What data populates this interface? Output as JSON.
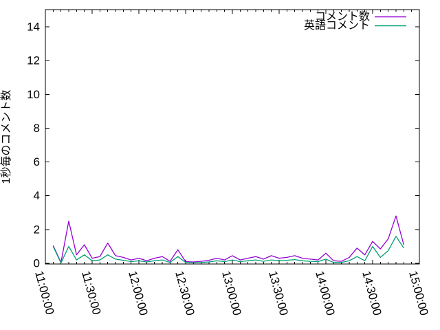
{
  "window": {
    "background": "#ffffff"
  },
  "chart_data": {
    "type": "line",
    "title": "",
    "xlabel": "",
    "ylabel": "1秒毎のコメント数",
    "grid": "off",
    "legend_position": "top-right-inside",
    "axis_color": "#000000",
    "ylim": [
      0,
      15
    ],
    "y_ticks": [
      0,
      2,
      4,
      6,
      8,
      10,
      12,
      14
    ],
    "x_tick_labels": [
      "11:00:00",
      "11:30:00",
      "12:00:00",
      "12:30:00",
      "13:00:00",
      "13:30:00",
      "14:00:00",
      "14:30:00",
      "15:00:00"
    ],
    "x_minor_tick_minutes": 5,
    "x": [
      "11:05:00",
      "11:10:00",
      "11:15:00",
      "11:20:00",
      "11:25:00",
      "11:30:00",
      "11:35:00",
      "11:40:00",
      "11:45:00",
      "11:50:00",
      "11:55:00",
      "12:00:00",
      "12:05:00",
      "12:10:00",
      "12:15:00",
      "12:20:00",
      "12:25:00",
      "12:30:00",
      "12:35:00",
      "12:40:00",
      "12:45:00",
      "12:50:00",
      "12:55:00",
      "13:00:00",
      "13:05:00",
      "13:10:00",
      "13:15:00",
      "13:20:00",
      "13:25:00",
      "13:30:00",
      "13:35:00",
      "13:40:00",
      "13:45:00",
      "13:50:00",
      "13:55:00",
      "14:00:00",
      "14:05:00",
      "14:10:00",
      "14:15:00",
      "14:20:00",
      "14:25:00",
      "14:30:00",
      "14:35:00",
      "14:40:00",
      "14:45:00",
      "14:50:00"
    ],
    "series": [
      {
        "name": "コメント数",
        "color": "#9400d3",
        "values": [
          1.05,
          0.05,
          2.5,
          0.5,
          1.1,
          0.3,
          0.4,
          1.2,
          0.45,
          0.35,
          0.2,
          0.3,
          0.15,
          0.3,
          0.4,
          0.12,
          0.8,
          0.1,
          0.08,
          0.12,
          0.18,
          0.3,
          0.2,
          0.45,
          0.2,
          0.3,
          0.4,
          0.25,
          0.45,
          0.3,
          0.35,
          0.45,
          0.3,
          0.25,
          0.2,
          0.6,
          0.15,
          0.12,
          0.35,
          0.9,
          0.5,
          1.3,
          0.85,
          1.45,
          2.8,
          1.1
        ]
      },
      {
        "name": "英語コメント",
        "color": "#009e73",
        "values": [
          1.0,
          0.02,
          1.0,
          0.2,
          0.5,
          0.15,
          0.2,
          0.5,
          0.25,
          0.18,
          0.1,
          0.15,
          0.08,
          0.15,
          0.2,
          0.05,
          0.4,
          0.05,
          0.04,
          0.05,
          0.08,
          0.15,
          0.1,
          0.2,
          0.1,
          0.15,
          0.2,
          0.12,
          0.2,
          0.15,
          0.18,
          0.22,
          0.15,
          0.12,
          0.1,
          0.25,
          0.05,
          0.05,
          0.15,
          0.4,
          0.15,
          1.0,
          0.35,
          0.75,
          1.6,
          0.9
        ]
      }
    ]
  }
}
